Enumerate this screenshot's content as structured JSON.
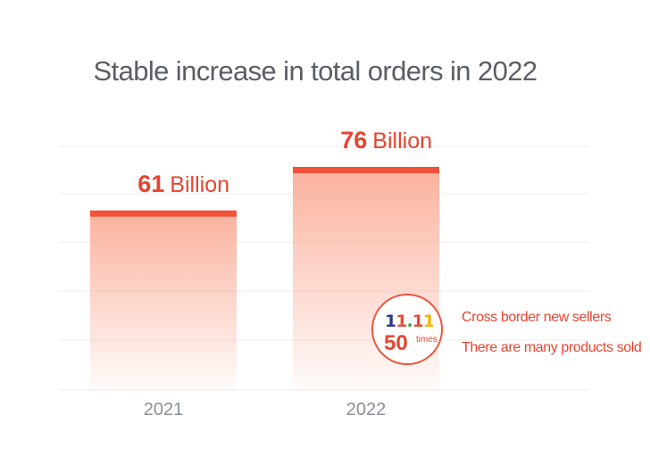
{
  "chart_data": {
    "type": "bar",
    "title": "Stable increase in total orders in 2022",
    "categories": [
      "2021",
      "2022"
    ],
    "values": [
      61,
      76
    ],
    "value_labels": [
      {
        "number": "61",
        "unit": "Billion"
      },
      {
        "number": "76",
        "unit": "Billion"
      }
    ],
    "ylim": [
      0,
      100
    ],
    "grid": true,
    "legend": "none",
    "colors": {
      "bar_top": "#f0533a",
      "bar_fill": "#fbb29e",
      "label": "#e8442f",
      "tick": "#8a8f96",
      "grid": "#ececec",
      "title": "#5a5f66"
    }
  },
  "badge": {
    "logo_text": "11.11",
    "times_number": "50",
    "times_unit": "times"
  },
  "notes": [
    "Cross border new sellers",
    "There are many products sold"
  ]
}
